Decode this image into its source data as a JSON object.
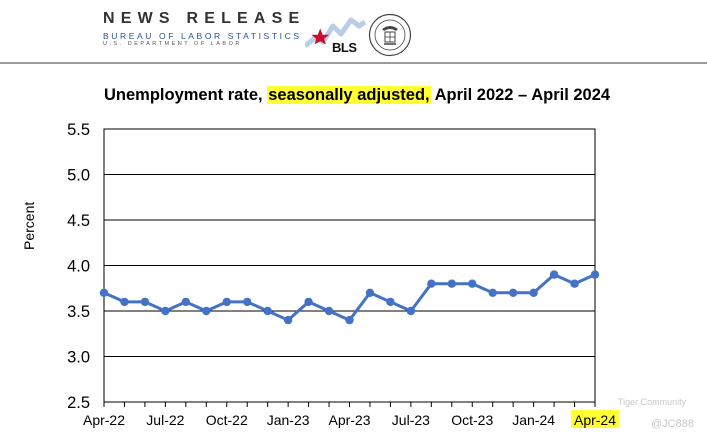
{
  "header": {
    "title": "NEWS RELEASE",
    "subtitle": "BUREAU OF LABOR STATISTICS",
    "department": "U.S. DEPARTMENT OF LABOR",
    "logo_text": "BLS"
  },
  "chart_data": {
    "type": "line",
    "title_parts": [
      "Unemployment rate, ",
      "seasonally adjusted,",
      " April 2022 – April 2024"
    ],
    "ylabel": "Percent",
    "xlabel": "",
    "ylim": [
      2.5,
      5.5
    ],
    "yticks": [
      "2.5",
      "3.0",
      "3.5",
      "4.0",
      "4.5",
      "5.0",
      "5.5"
    ],
    "grid": true,
    "legend": "none",
    "line_color": "#4472c4",
    "highlight_color": "#ffff33",
    "x": [
      "Apr-22",
      "May-22",
      "Jun-22",
      "Jul-22",
      "Aug-22",
      "Sep-22",
      "Oct-22",
      "Nov-22",
      "Dec-22",
      "Jan-23",
      "Feb-23",
      "Mar-23",
      "Apr-23",
      "May-23",
      "Jun-23",
      "Jul-23",
      "Aug-23",
      "Sep-23",
      "Oct-23",
      "Nov-23",
      "Dec-23",
      "Jan-24",
      "Feb-24",
      "Mar-24",
      "Apr-24"
    ],
    "values": [
      3.7,
      3.6,
      3.6,
      3.5,
      3.6,
      3.5,
      3.6,
      3.6,
      3.5,
      3.4,
      3.6,
      3.5,
      3.4,
      3.7,
      3.6,
      3.5,
      3.8,
      3.8,
      3.8,
      3.7,
      3.7,
      3.7,
      3.9,
      3.8,
      3.9
    ],
    "xtick_labels": [
      "Apr-22",
      "Jul-22",
      "Oct-22",
      "Jan-23",
      "Apr-23",
      "Jul-23",
      "Oct-23",
      "Jan-24",
      "Apr-24"
    ],
    "highlighted_tick": "Apr-24"
  },
  "watermark": {
    "brand": "Tiger Community",
    "handle": "@JC888"
  }
}
